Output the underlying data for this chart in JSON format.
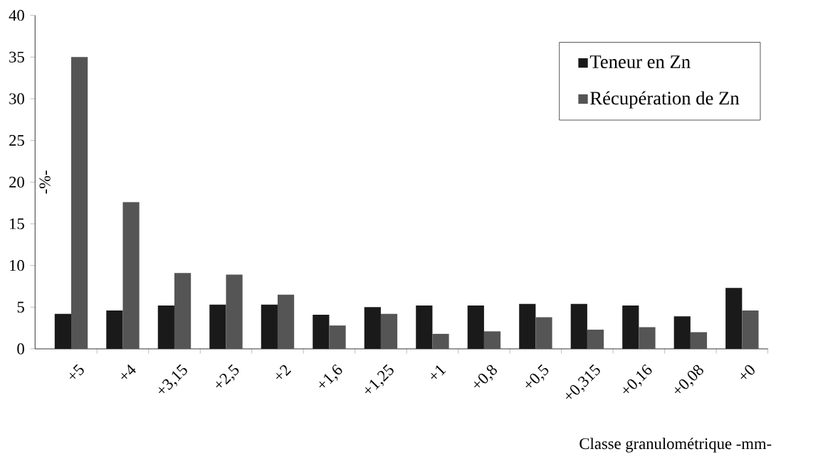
{
  "chart_data": {
    "type": "bar",
    "ylabel": "-%-",
    "xlabel": "Classe granulométrique -mm-",
    "categories": [
      "+5",
      "+4",
      "+3,15",
      "+2,5",
      "+2",
      "+1,6",
      "+1,25",
      "+1",
      "+0,8",
      "+0,5",
      "+0,315",
      "+0,16",
      "+0,08",
      "+0"
    ],
    "series": [
      {
        "name": "Teneur en Zn",
        "color": "#1a1a1a",
        "values": [
          4.2,
          4.6,
          5.2,
          5.3,
          5.3,
          4.1,
          5.0,
          5.2,
          5.2,
          5.4,
          5.4,
          5.2,
          3.9,
          7.3
        ]
      },
      {
        "name": "Récupération de Zn",
        "color": "#555555",
        "values": [
          35.0,
          17.6,
          9.1,
          8.9,
          6.5,
          2.8,
          4.2,
          1.8,
          2.1,
          3.8,
          2.3,
          2.6,
          2.0,
          4.6
        ]
      }
    ],
    "ylim": [
      0,
      40
    ],
    "yticks": [
      0,
      5,
      10,
      15,
      20,
      25,
      30,
      35,
      40
    ],
    "legend": "top right"
  }
}
